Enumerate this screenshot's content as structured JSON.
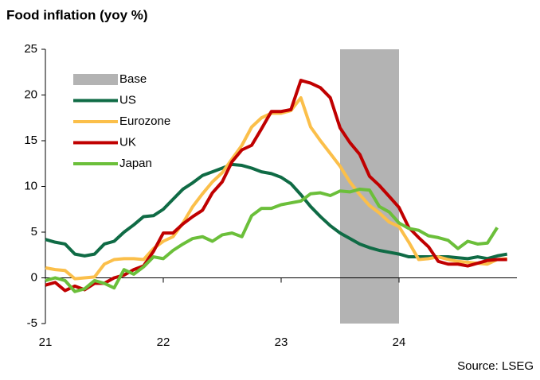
{
  "chart_data": {
    "type": "line",
    "title": "Food inflation (yoy %)",
    "source": "Source: LSEG",
    "x": [
      21,
      21.083,
      21.167,
      21.25,
      21.333,
      21.417,
      21.5,
      21.583,
      21.667,
      21.75,
      21.833,
      21.917,
      22,
      22.083,
      22.167,
      22.25,
      22.333,
      22.417,
      22.5,
      22.583,
      22.667,
      22.75,
      22.833,
      22.917,
      23,
      23.083,
      23.167,
      23.25,
      23.333,
      23.417,
      23.5,
      23.583,
      23.667,
      23.75,
      23.833,
      23.917,
      24,
      24.083,
      24.167,
      24.25,
      24.333,
      24.417,
      24.5,
      24.583,
      24.667,
      24.75,
      24.833,
      24.917
    ],
    "base": {
      "name": "Base",
      "color": "#b3b3b3",
      "x": [
        23.5,
        24
      ]
    },
    "series": [
      {
        "name": "US",
        "color": "#0f6b45",
        "values": [
          4.2,
          3.9,
          3.7,
          2.6,
          2.4,
          2.6,
          3.7,
          4.0,
          5.0,
          5.8,
          6.7,
          6.8,
          7.5,
          8.6,
          9.7,
          10.4,
          11.2,
          11.6,
          12.0,
          12.4,
          12.3,
          12.0,
          11.6,
          11.4,
          11.0,
          10.3,
          9.1,
          7.8,
          6.7,
          5.7,
          4.9,
          4.3,
          3.7,
          3.3,
          3.0,
          2.8,
          2.6,
          2.3,
          2.3,
          2.3,
          2.3,
          2.3,
          2.2,
          2.1,
          2.3,
          2.1,
          2.4,
          2.6
        ]
      },
      {
        "name": "Eurozone",
        "color": "#fbbf4a",
        "values": [
          1.1,
          0.9,
          0.8,
          -0.1,
          0.0,
          0.1,
          1.5,
          2.0,
          2.1,
          2.1,
          2.0,
          3.2,
          4.0,
          4.5,
          6.0,
          7.8,
          9.2,
          10.5,
          11.5,
          13.0,
          14.5,
          16.5,
          17.5,
          18.0,
          18.0,
          18.3,
          19.7,
          16.5,
          15.0,
          13.6,
          12.2,
          10.5,
          9.1,
          7.9,
          7.1,
          6.1,
          5.6,
          3.9,
          2.0,
          2.1,
          2.3,
          2.0,
          1.8,
          1.7,
          1.6,
          1.5,
          2.0,
          2.1
        ]
      },
      {
        "name": "UK",
        "color": "#c00000",
        "values": [
          -0.8,
          -0.5,
          -1.4,
          -0.9,
          -1.3,
          -0.6,
          -0.6,
          0.0,
          0.3,
          0.9,
          1.3,
          2.9,
          4.9,
          4.9,
          5.9,
          6.7,
          7.4,
          9.3,
          10.5,
          12.7,
          14.0,
          14.5,
          16.3,
          18.2,
          18.2,
          18.4,
          21.6,
          21.3,
          20.8,
          19.7,
          16.4,
          14.8,
          13.5,
          11.1,
          10.1,
          8.9,
          7.7,
          5.5,
          4.4,
          3.4,
          1.8,
          1.5,
          1.5,
          1.3,
          1.6,
          1.9,
          2.0,
          2.0
        ]
      },
      {
        "name": "Japan",
        "color": "#6bbf3a",
        "values": [
          -0.3,
          0.0,
          -0.3,
          -1.5,
          -1.2,
          -0.3,
          -0.6,
          -1.1,
          0.9,
          0.4,
          1.2,
          2.3,
          2.1,
          3.0,
          3.7,
          4.3,
          4.5,
          4.0,
          4.7,
          4.9,
          4.5,
          6.8,
          7.6,
          7.6,
          8.0,
          8.2,
          8.4,
          9.2,
          9.3,
          9.0,
          9.5,
          9.4,
          9.7,
          9.6,
          7.8,
          7.2,
          6.0,
          5.4,
          5.2,
          4.6,
          4.4,
          4.1,
          3.2,
          4.0,
          3.7,
          3.8,
          5.5,
          null
        ]
      }
    ],
    "xlim": [
      21,
      25
    ],
    "xticks": [
      21,
      22,
      23,
      24
    ],
    "ylim": [
      -5,
      25
    ],
    "yticks": [
      -5,
      0,
      5,
      10,
      15,
      20,
      25
    ],
    "grid": false,
    "legend": "upper left"
  }
}
